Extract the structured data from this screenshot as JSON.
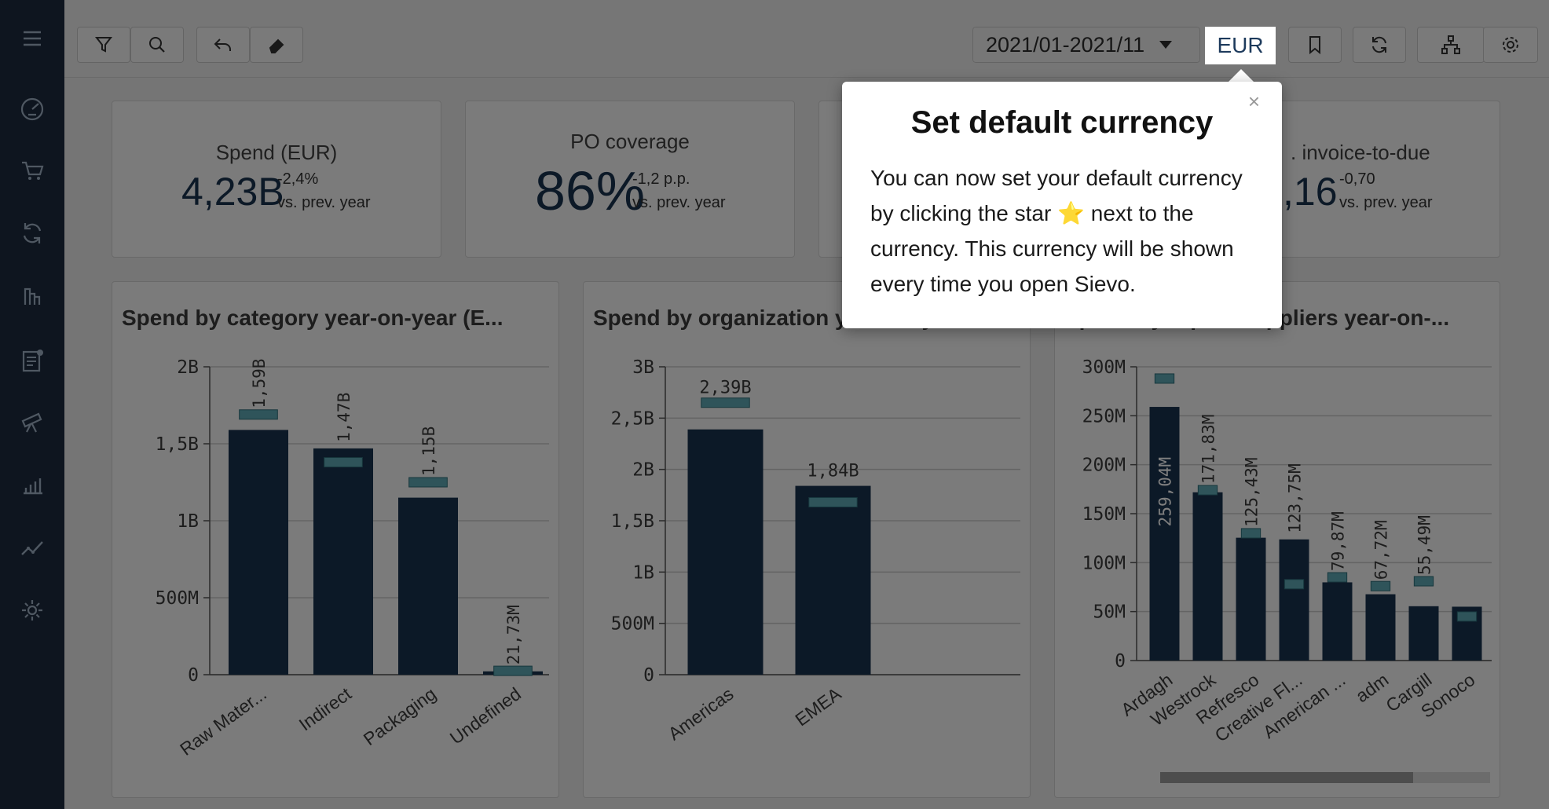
{
  "toolbar": {
    "period": "2021/01-2021/11",
    "currency": "EUR"
  },
  "kpis": {
    "spend": {
      "label": "Spend (EUR)",
      "value": "4,23B",
      "delta": "-2,4%",
      "sub": "vs. prev. year"
    },
    "po": {
      "label": "PO coverage",
      "value": "86%",
      "delta": "-1,2 p.p.",
      "sub": "vs. prev. year"
    },
    "invoice": {
      "label": ". invoice-to-due",
      "value": ",16",
      "delta": "-0,70",
      "sub": "vs. prev. year"
    }
  },
  "popup": {
    "title": "Set default currency",
    "body_before_star": "You can now set your default currency by clicking the star",
    "star": "⭐",
    "body_after_star": "next to the currency. This currency will be shown every time you open Sievo.",
    "close": "×"
  },
  "colors": {
    "bar": "#19324f",
    "marker": "#5fa9b5",
    "grid": "#c8c8c8",
    "sidebar": "#1c2a3e"
  },
  "chart_data": [
    {
      "type": "bar",
      "title": "Spend by category year-on-year (E...",
      "categories": [
        "Raw Mater...",
        "Indirect",
        "Packaging",
        "Undefined"
      ],
      "values": [
        1590000000,
        1470000000,
        1150000000,
        21730000
      ],
      "prev_values": [
        1690000000,
        1380000000,
        1250000000,
        25000000
      ],
      "data_labels": [
        "1,59B",
        "1,47B",
        "1,15B",
        "21,73M"
      ],
      "yticks": [
        0,
        500000000,
        1000000000,
        1500000000,
        2000000000
      ],
      "ytick_labels": [
        "0",
        "500M",
        "1B",
        "1,5B",
        "2B"
      ],
      "ylim": [
        0,
        2000000000
      ]
    },
    {
      "type": "bar",
      "title": "Spend by organization year-on-year...",
      "categories": [
        "Americas",
        "EMEA"
      ],
      "values": [
        2390000000,
        1840000000
      ],
      "prev_values": [
        2650000000,
        1680000000
      ],
      "data_labels": [
        "2,39B",
        "1,84B"
      ],
      "yticks": [
        0,
        500000000,
        1000000000,
        1500000000,
        2000000000,
        2500000000,
        3000000000
      ],
      "ytick_labels": [
        "0",
        "500M",
        "1B",
        "1,5B",
        "2B",
        "2,5B",
        "3B"
      ],
      "ylim": [
        0,
        3000000000
      ]
    },
    {
      "type": "bar",
      "title": "Spend by top 10 suppliers year-on-...",
      "categories": [
        "Ardagh",
        "Westrock",
        "Refresco",
        "Creative Fl...",
        "American ...",
        "adm",
        "Cargill",
        "Sonoco"
      ],
      "values": [
        259040000,
        171830000,
        125430000,
        123750000,
        79870000,
        67720000,
        55490000,
        55000000
      ],
      "prev_values": [
        288000000,
        174000000,
        130000000,
        78000000,
        85000000,
        76000000,
        81000000,
        45000000
      ],
      "data_labels": [
        "259,04M",
        "171,83M",
        "125,43M",
        "123,75M",
        "79,87M",
        "67,72M",
        "55,49M",
        ""
      ],
      "yticks": [
        0,
        50000000,
        100000000,
        150000000,
        200000000,
        250000000,
        300000000
      ],
      "ytick_labels": [
        "0",
        "50M",
        "100M",
        "150M",
        "200M",
        "250M",
        "300M"
      ],
      "ylim": [
        0,
        300000000
      ]
    }
  ]
}
